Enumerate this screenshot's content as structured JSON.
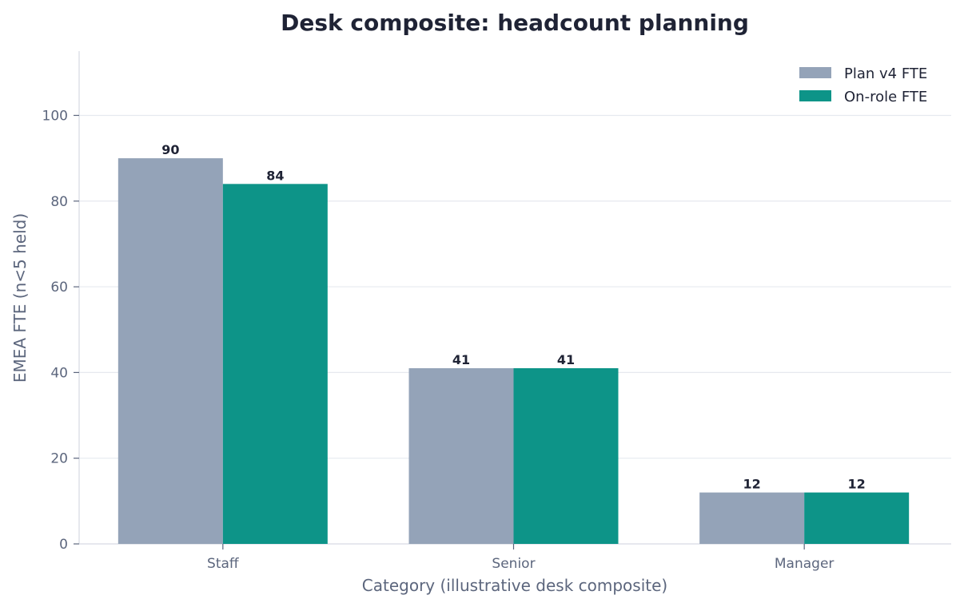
{
  "chart_data": {
    "type": "bar",
    "title": "Desk composite: headcount planning",
    "xlabel": "Category (illustrative desk composite)",
    "ylabel": "EMEA FTE (n<5 held)",
    "categories": [
      "Staff",
      "Senior",
      "Manager"
    ],
    "series": [
      {
        "name": "Plan v4 FTE",
        "values": [
          90,
          41,
          12
        ],
        "color": "#94a3b8"
      },
      {
        "name": "On-role FTE",
        "values": [
          84,
          41,
          12
        ],
        "color": "#0d9488"
      }
    ],
    "ylim": [
      0,
      115
    ],
    "yticks": [
      0,
      20,
      40,
      60,
      80,
      100
    ],
    "grid": true,
    "legend": "top-right"
  }
}
